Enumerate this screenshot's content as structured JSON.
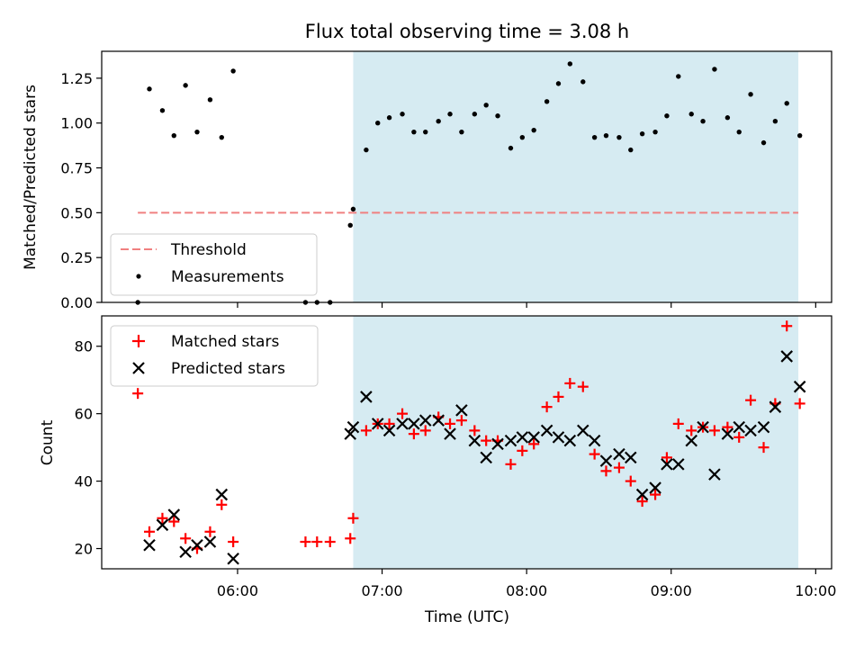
{
  "chart_data": {
    "title": "Flux total observing time = 3.08 h",
    "xlabel": "Time (UTC)",
    "x_tick_labels": [
      "06:00",
      "07:00",
      "08:00",
      "09:00",
      "10:00"
    ],
    "x_ticks_hours": [
      6,
      7,
      8,
      9,
      10
    ],
    "xlim_hours": [
      5.06,
      10.11
    ],
    "observing_window_hours": [
      6.8,
      9.88
    ],
    "window_color": "#add8e6",
    "panels": [
      {
        "type": "scatter",
        "ylabel": "Matched/Predicted stars",
        "ylim": [
          0.0,
          1.4
        ],
        "y_ticks": [
          0.0,
          0.25,
          0.5,
          0.75,
          1.0,
          1.25
        ],
        "y_tick_labels": [
          "0.00",
          "0.25",
          "0.50",
          "0.75",
          "1.00",
          "1.25"
        ],
        "threshold": {
          "name": "Threshold",
          "value": 0.5,
          "x_range_hours": [
            5.31,
            9.88
          ],
          "color": "#f08080"
        },
        "series": [
          {
            "name": "Measurements",
            "color": "#000000",
            "marker": "dot",
            "x": [
              5.31,
              5.39,
              5.48,
              5.56,
              5.64,
              5.72,
              5.81,
              5.89,
              5.97,
              6.47,
              6.55,
              6.64,
              6.78,
              6.8,
              6.89,
              6.97,
              7.05,
              7.14,
              7.22,
              7.3,
              7.39,
              7.47,
              7.55,
              7.64,
              7.72,
              7.8,
              7.89,
              7.97,
              8.05,
              8.14,
              8.22,
              8.3,
              8.39,
              8.47,
              8.55,
              8.64,
              8.72,
              8.8,
              8.89,
              8.97,
              9.05,
              9.14,
              9.22,
              9.3,
              9.39,
              9.47,
              9.55,
              9.64,
              9.72,
              9.8,
              9.89
            ],
            "y": [
              0.0,
              1.19,
              1.07,
              0.93,
              1.21,
              0.95,
              1.13,
              0.92,
              1.29,
              0.0,
              0.0,
              0.0,
              0.43,
              0.52,
              0.85,
              1.0,
              1.03,
              1.05,
              0.95,
              0.95,
              1.01,
              1.05,
              0.95,
              1.05,
              1.1,
              1.04,
              0.86,
              0.92,
              0.96,
              1.12,
              1.22,
              1.33,
              1.23,
              0.92,
              0.93,
              0.92,
              0.85,
              0.94,
              0.95,
              1.04,
              1.26,
              1.05,
              1.01,
              1.3,
              1.03,
              0.95,
              1.16,
              0.89,
              1.01,
              1.11,
              0.93
            ]
          }
        ],
        "legend": "lower left"
      },
      {
        "type": "scatter",
        "ylabel": "Count",
        "ylim": [
          14,
          89
        ],
        "y_ticks": [
          20,
          40,
          60,
          80
        ],
        "y_tick_labels": [
          "20",
          "40",
          "60",
          "80"
        ],
        "series": [
          {
            "name": "Matched stars",
            "color": "#ff0000",
            "marker": "plus",
            "x": [
              5.31,
              5.39,
              5.48,
              5.56,
              5.64,
              5.72,
              5.81,
              5.89,
              5.97,
              6.47,
              6.55,
              6.64,
              6.78,
              6.8,
              6.89,
              6.97,
              7.05,
              7.14,
              7.22,
              7.3,
              7.39,
              7.47,
              7.55,
              7.64,
              7.72,
              7.8,
              7.89,
              7.97,
              8.05,
              8.14,
              8.22,
              8.3,
              8.39,
              8.47,
              8.55,
              8.64,
              8.72,
              8.8,
              8.89,
              8.97,
              9.05,
              9.14,
              9.22,
              9.3,
              9.39,
              9.47,
              9.55,
              9.64,
              9.72,
              9.8,
              9.89
            ],
            "y": [
              66,
              25,
              29,
              28,
              23,
              20,
              25,
              33,
              22,
              22,
              22,
              22,
              23,
              29,
              55,
              57,
              57,
              60,
              54,
              55,
              59,
              57,
              58,
              55,
              52,
              52,
              45,
              49,
              51,
              62,
              65,
              69,
              68,
              48,
              43,
              44,
              40,
              34,
              36,
              47,
              57,
              55,
              56,
              55,
              56,
              53,
              64,
              50,
              63,
              86,
              63
            ]
          },
          {
            "name": "Predicted stars",
            "color": "#000000",
            "marker": "x",
            "x": [
              5.39,
              5.48,
              5.56,
              5.64,
              5.72,
              5.81,
              5.89,
              5.97,
              6.78,
              6.8,
              6.89,
              6.97,
              7.05,
              7.14,
              7.22,
              7.3,
              7.39,
              7.47,
              7.55,
              7.64,
              7.72,
              7.8,
              7.89,
              7.97,
              8.05,
              8.14,
              8.22,
              8.3,
              8.39,
              8.47,
              8.55,
              8.64,
              8.72,
              8.8,
              8.89,
              8.97,
              9.05,
              9.14,
              9.22,
              9.3,
              9.39,
              9.47,
              9.55,
              9.64,
              9.72,
              9.8,
              9.89
            ],
            "y": [
              21,
              27,
              30,
              19,
              21,
              22,
              36,
              17,
              54,
              56,
              65,
              57,
              55,
              57,
              57,
              58,
              58,
              54,
              61,
              52,
              47,
              51,
              52,
              53,
              53,
              55,
              53,
              52,
              55,
              52,
              46,
              48,
              47,
              36,
              38,
              45,
              45,
              52,
              56,
              42,
              54,
              56,
              55,
              56,
              62,
              77,
              68
            ]
          }
        ],
        "legend": "upper left"
      }
    ]
  }
}
